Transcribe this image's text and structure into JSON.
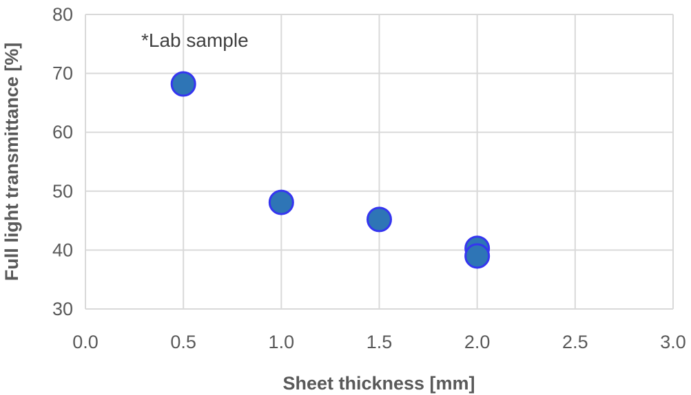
{
  "chart_data": {
    "type": "scatter",
    "title": "",
    "xlabel": "Sheet thickness [mm]",
    "ylabel": "Full light transmittance [%]",
    "xlim": [
      0.0,
      3.0
    ],
    "ylim": [
      30,
      80
    ],
    "xticks": [
      "0.0",
      "0.5",
      "1.0",
      "1.5",
      "2.0",
      "2.5",
      "3.0"
    ],
    "yticks": [
      "30",
      "40",
      "50",
      "60",
      "70",
      "80"
    ],
    "grid": "horizontal and vertical",
    "annotation": "*Lab sample",
    "series": [
      {
        "name": "Lab sample",
        "color": "#2E75B6",
        "edge_color": "#3535F0",
        "points": [
          [
            0.5,
            68.2
          ],
          [
            1.0,
            48.1
          ],
          [
            1.5,
            45.2
          ],
          [
            2.0,
            40.3
          ],
          [
            2.0,
            39.0
          ]
        ]
      }
    ]
  }
}
